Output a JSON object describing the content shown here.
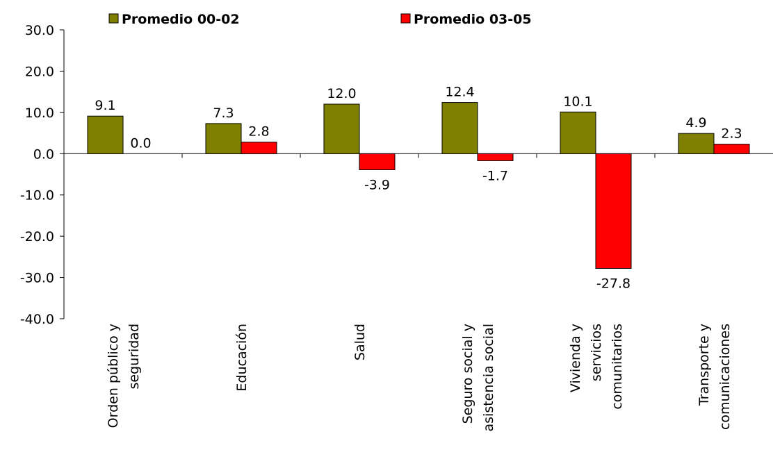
{
  "chart_data": {
    "type": "bar",
    "categories": [
      [
        "Orden público y",
        "seguridad"
      ],
      [
        "Educación"
      ],
      [
        "Salud"
      ],
      [
        "Seguro social y",
        "asistencia social"
      ],
      [
        "Vivienda y",
        "servicios",
        "comunitarios"
      ],
      [
        "Transporte y",
        "comunicaciones"
      ]
    ],
    "series": [
      {
        "name": "Promedio 00-02",
        "color": "#808000",
        "values": [
          9.1,
          7.3,
          12.0,
          12.4,
          10.1,
          4.9
        ],
        "labels": [
          "9.1",
          "7.3",
          "12.0",
          "12.4",
          "10.1",
          "4.9"
        ]
      },
      {
        "name": "Promedio 03-05",
        "color": "#ff0000",
        "values": [
          0.0,
          2.8,
          -3.9,
          -1.7,
          -27.8,
          2.3
        ],
        "labels": [
          "0.0",
          "2.8",
          "-3.9",
          "-1.7",
          "-27.8",
          "2.3"
        ]
      }
    ],
    "ylim": [
      -40,
      30
    ],
    "yticks": [
      30,
      20,
      10,
      0,
      -10,
      -20,
      -30,
      -40
    ],
    "ytick_labels": [
      "30.0",
      "20.0",
      "10.0",
      "0.0",
      "-10.0",
      "-20.0",
      "-30.0",
      "-40.0"
    ],
    "grid": false,
    "legend_position": "top"
  }
}
